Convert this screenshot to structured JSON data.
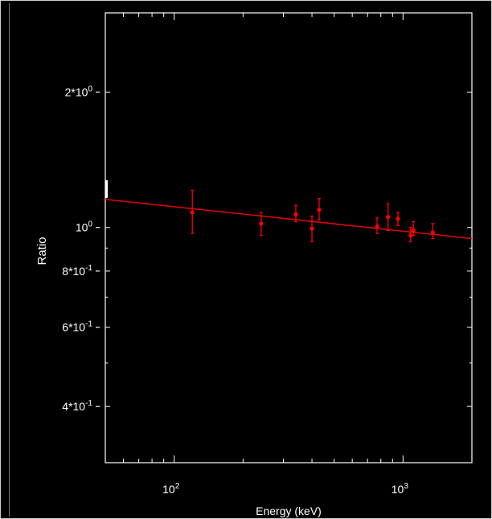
{
  "chart_data": {
    "type": "scatter",
    "title": "",
    "xlabel": "Energy (keV)",
    "ylabel": "Ratio",
    "xscale": "log",
    "yscale": "log",
    "xlim": [
      50,
      2000
    ],
    "ylim": [
      0.3,
      3.0
    ],
    "x_tick_labels": [
      {
        "value": 100,
        "label": "10",
        "exp": "2"
      },
      {
        "value": 1000,
        "label": "10",
        "exp": "3"
      }
    ],
    "y_tick_labels": [
      {
        "value": 2.0,
        "label": "2*10",
        "exp": "0"
      },
      {
        "value": 1.0,
        "label": "10",
        "exp": "0"
      },
      {
        "value": 0.8,
        "label": "8*10",
        "exp": "-1"
      },
      {
        "value": 0.6,
        "label": "6*10",
        "exp": "-1"
      },
      {
        "value": 0.4,
        "label": "4*10",
        "exp": "-1"
      }
    ],
    "series": [
      {
        "color": "#ff0000",
        "points": [
          {
            "x": 120,
            "y": 1.08,
            "ylow": 0.97,
            "yhigh": 1.21
          },
          {
            "x": 240,
            "y": 1.02,
            "ylow": 0.96,
            "yhigh": 1.08
          },
          {
            "x": 340,
            "y": 1.07,
            "ylow": 1.03,
            "yhigh": 1.12
          },
          {
            "x": 400,
            "y": 0.995,
            "ylow": 0.93,
            "yhigh": 1.06
          },
          {
            "x": 430,
            "y": 1.095,
            "ylow": 1.04,
            "yhigh": 1.16
          },
          {
            "x": 770,
            "y": 1.005,
            "ylow": 0.97,
            "yhigh": 1.05
          },
          {
            "x": 860,
            "y": 1.055,
            "ylow": 0.985,
            "yhigh": 1.13
          },
          {
            "x": 950,
            "y": 1.045,
            "ylow": 1.01,
            "yhigh": 1.08
          },
          {
            "x": 1080,
            "y": 0.96,
            "ylow": 0.93,
            "yhigh": 1.0
          },
          {
            "x": 1110,
            "y": 0.985,
            "ylow": 0.96,
            "yhigh": 1.03
          },
          {
            "x": 1350,
            "y": 0.975,
            "ylow": 0.945,
            "yhigh": 1.02
          }
        ]
      }
    ],
    "fit_line": {
      "color": "#e80000",
      "x": [
        50,
        2000
      ],
      "y": [
        1.155,
        0.945
      ]
    },
    "grid": false,
    "legend": "none"
  }
}
